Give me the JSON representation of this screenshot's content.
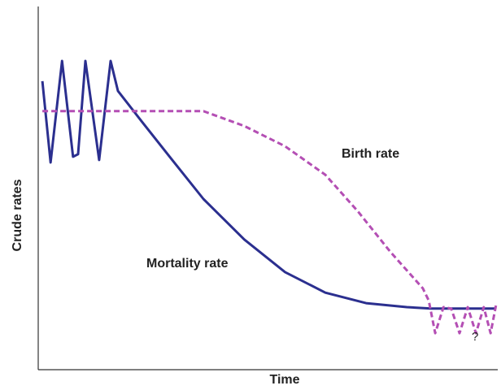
{
  "chart_data": {
    "type": "line",
    "x_label": "Time",
    "y_label": "Crude rates",
    "xlim": [
      0,
      100
    ],
    "ylim": [
      0,
      100
    ],
    "annotations": [
      "Birth rate",
      "Mortality rate",
      "?"
    ],
    "series": [
      {
        "name": "Mortality rate",
        "color": "#2b2f8f",
        "dashed": false,
        "x": [
          0.9,
          2.7,
          5.2,
          7.6,
          8.7,
          10.3,
          13.3,
          15.8,
          17.4,
          22.7,
          29.0,
          36.1,
          45.0,
          53.9,
          62.7,
          71.6,
          80.5,
          85.8,
          100
        ],
        "values": [
          79.8,
          57.3,
          85.4,
          58.9,
          59.6,
          85.4,
          58.0,
          85.4,
          77.1,
          68.5,
          58.4,
          47.2,
          36.0,
          27.0,
          21.3,
          18.4,
          17.3,
          16.9,
          16.9
        ]
      },
      {
        "name": "Birth rate",
        "color": "#b44fb4",
        "dashed": true,
        "x": [
          0.9,
          36.1,
          45.0,
          53.9,
          62.7,
          69.8,
          76.9,
          84.0,
          85.3,
          86.7,
          88.5,
          90.2,
          92.0,
          93.8,
          95.6,
          97.3,
          98.8,
          100
        ],
        "values": [
          71.5,
          71.5,
          67.4,
          61.8,
          53.9,
          43.8,
          32.6,
          22.5,
          19.1,
          10.1,
          17.3,
          16.9,
          10.1,
          17.3,
          10.1,
          17.3,
          10.1,
          18.0
        ]
      }
    ]
  }
}
